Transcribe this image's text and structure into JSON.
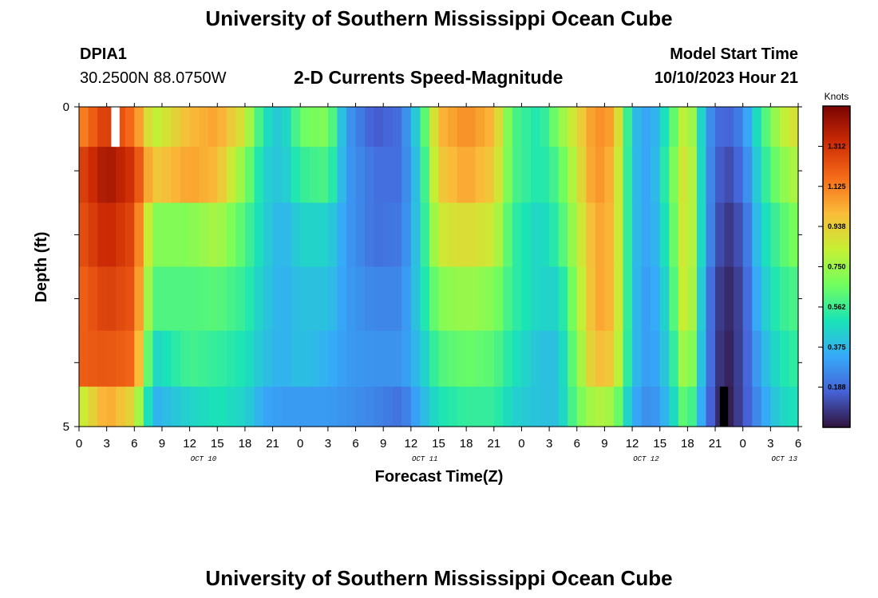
{
  "header": {
    "title": "University of Southern Mississippi Ocean Cube",
    "station_id": "DPIA1",
    "station_coords": "30.2500N  88.0750W",
    "chart_title": "2-D Currents Speed-Magnitude",
    "model_start_label": "Model Start Time",
    "model_start_value": "10/10/2023 Hour 21"
  },
  "footer": {
    "title": "University of Southern Mississippi Ocean Cube"
  },
  "chart_data": {
    "type": "heatmap",
    "title": "2-D Currents Speed-Magnitude",
    "xlabel": "Forecast Time(Z)",
    "ylabel": "Depth (ft)",
    "colorbar_label": "Knots",
    "colorbar_ticks": [
      "1.312",
      "1.125",
      "0.938",
      "0.750",
      "0.562",
      "0.375",
      "0.188"
    ],
    "colorbar_range": [
      0.0,
      1.5
    ],
    "x_tick_labels": [
      "0",
      "3",
      "6",
      "9",
      "12",
      "15",
      "18",
      "21",
      "0",
      "3",
      "6",
      "9",
      "12",
      "15",
      "18",
      "21",
      "0",
      "3",
      "6",
      "9",
      "12",
      "15",
      "18",
      "21",
      "0",
      "3",
      "6"
    ],
    "date_labels": [
      {
        "text": "OCT 10",
        "tick_index": 4.5
      },
      {
        "text": "OCT 11",
        "tick_index": 12.5
      },
      {
        "text": "OCT 12",
        "tick_index": 20.5
      },
      {
        "text": "OCT 13",
        "tick_index": 25.5
      }
    ],
    "y_tick_labels": [
      "0",
      "5"
    ],
    "y_range": [
      0,
      5
    ],
    "x_range_hours": [
      0,
      78
    ],
    "grid": false,
    "depth_levels": [
      0.25,
      1.0,
      2.0,
      3.0,
      4.0,
      4.75
    ],
    "profile_keyframes": [
      {
        "hour": 0,
        "values": [
          1.1,
          1.25,
          1.22,
          1.18,
          1.2,
          0.8
        ]
      },
      {
        "hour": 3,
        "values": [
          1.3,
          1.42,
          1.35,
          1.28,
          1.22,
          1.05
        ]
      },
      {
        "hour": 6,
        "values": [
          1.15,
          1.3,
          1.25,
          1.22,
          1.18,
          0.9
        ]
      },
      {
        "hour": 8,
        "values": [
          0.8,
          0.95,
          0.7,
          0.6,
          0.45,
          0.35
        ]
      },
      {
        "hour": 12,
        "values": [
          1.0,
          1.05,
          0.7,
          0.6,
          0.58,
          0.45
        ]
      },
      {
        "hour": 15,
        "values": [
          1.05,
          1.0,
          0.78,
          0.62,
          0.55,
          0.5
        ]
      },
      {
        "hour": 18,
        "values": [
          0.85,
          0.7,
          0.6,
          0.55,
          0.5,
          0.45
        ]
      },
      {
        "hour": 20,
        "values": [
          0.5,
          0.45,
          0.45,
          0.42,
          0.4,
          0.33
        ]
      },
      {
        "hour": 22,
        "values": [
          0.4,
          0.4,
          0.35,
          0.35,
          0.35,
          0.3
        ]
      },
      {
        "hour": 24,
        "values": [
          0.65,
          0.55,
          0.45,
          0.4,
          0.4,
          0.3
        ]
      },
      {
        "hour": 27,
        "values": [
          0.7,
          0.6,
          0.45,
          0.4,
          0.35,
          0.3
        ]
      },
      {
        "hour": 29,
        "values": [
          0.3,
          0.3,
          0.3,
          0.3,
          0.3,
          0.28
        ]
      },
      {
        "hour": 32,
        "values": [
          0.15,
          0.2,
          0.2,
          0.25,
          0.28,
          0.25
        ]
      },
      {
        "hour": 35,
        "values": [
          0.2,
          0.2,
          0.22,
          0.25,
          0.28,
          0.2
        ]
      },
      {
        "hour": 37,
        "values": [
          0.5,
          0.45,
          0.45,
          0.45,
          0.4,
          0.35
        ]
      },
      {
        "hour": 39,
        "values": [
          1.0,
          0.95,
          0.85,
          0.7,
          0.6,
          0.5
        ]
      },
      {
        "hour": 42,
        "values": [
          1.1,
          1.05,
          0.9,
          0.75,
          0.65,
          0.55
        ]
      },
      {
        "hour": 45,
        "values": [
          1.0,
          0.95,
          0.85,
          0.7,
          0.62,
          0.55
        ]
      },
      {
        "hour": 47,
        "values": [
          0.6,
          0.6,
          0.55,
          0.55,
          0.5,
          0.45
        ]
      },
      {
        "hour": 50,
        "values": [
          0.5,
          0.5,
          0.45,
          0.45,
          0.4,
          0.4
        ]
      },
      {
        "hour": 52,
        "values": [
          0.7,
          0.6,
          0.55,
          0.45,
          0.4,
          0.4
        ]
      },
      {
        "hour": 54,
        "values": [
          0.9,
          0.85,
          0.8,
          0.75,
          0.7,
          0.65
        ]
      },
      {
        "hour": 56,
        "values": [
          1.1,
          1.1,
          1.05,
          1.05,
          1.0,
          0.8
        ]
      },
      {
        "hour": 58,
        "values": [
          1.05,
          1.0,
          1.0,
          1.0,
          0.95,
          0.75
        ]
      },
      {
        "hour": 60,
        "values": [
          0.4,
          0.4,
          0.4,
          0.4,
          0.4,
          0.35
        ]
      },
      {
        "hour": 62,
        "values": [
          0.3,
          0.3,
          0.3,
          0.28,
          0.28,
          0.25
        ]
      },
      {
        "hour": 64,
        "values": [
          0.55,
          0.6,
          0.55,
          0.5,
          0.45,
          0.4
        ]
      },
      {
        "hour": 66,
        "values": [
          0.9,
          0.95,
          0.95,
          0.95,
          0.85,
          0.7
        ]
      },
      {
        "hour": 68,
        "values": [
          0.3,
          0.3,
          0.3,
          0.25,
          0.25,
          0.22
        ]
      },
      {
        "hour": 70,
        "values": [
          0.15,
          0.1,
          0.06,
          0.03,
          0.01,
          0.0
        ]
      },
      {
        "hour": 72,
        "values": [
          0.25,
          0.2,
          0.15,
          0.12,
          0.12,
          0.12
        ]
      },
      {
        "hour": 74,
        "values": [
          0.55,
          0.5,
          0.45,
          0.4,
          0.35,
          0.3
        ]
      },
      {
        "hour": 76,
        "values": [
          0.8,
          0.7,
          0.6,
          0.55,
          0.5,
          0.45
        ]
      },
      {
        "hour": 78,
        "values": [
          0.9,
          0.8,
          0.7,
          0.6,
          0.55,
          0.5
        ]
      }
    ],
    "missing_cells": [
      {
        "hour": 3.5,
        "depth_index": 0,
        "fill": "#ffffff"
      },
      {
        "hour": 69.5,
        "depth_index": 5,
        "fill": "#000000"
      }
    ],
    "colormap": [
      "#30123b",
      "#4662d7",
      "#36aaf9",
      "#1ae4b6",
      "#72fe5e",
      "#c7ef34",
      "#fabb39",
      "#f66b19",
      "#cb2a04",
      "#7a0403"
    ]
  }
}
